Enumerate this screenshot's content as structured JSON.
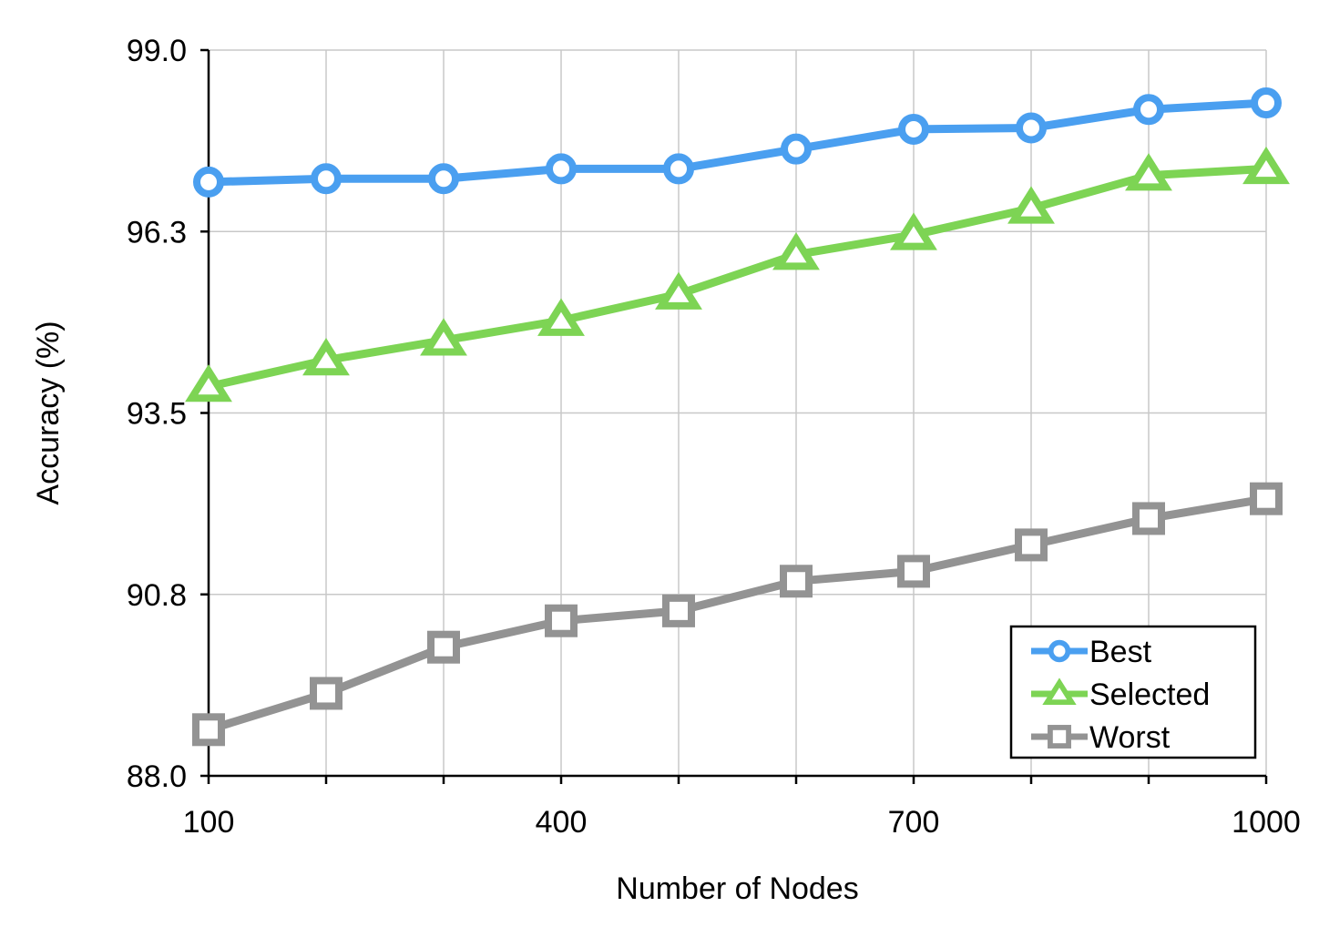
{
  "chart_data": {
    "type": "line",
    "xlabel": "Number of Nodes",
    "ylabel": "Accuracy (%)",
    "x": [
      100,
      200,
      300,
      400,
      500,
      600,
      700,
      800,
      900,
      1000
    ],
    "xlim": [
      100,
      1000
    ],
    "xtick_labels": [
      "100",
      "400",
      "700",
      "1000"
    ],
    "xtick_values": [
      100,
      400,
      700,
      1000
    ],
    "ylim": [
      88.0,
      99.0
    ],
    "ytick_labels": [
      "99.0",
      "96.3",
      "93.5",
      "90.8",
      "88.0"
    ],
    "ytick_values": [
      99.0,
      96.25,
      93.5,
      90.75,
      88.0
    ],
    "grid": true,
    "legend_position": "bottom-right",
    "series": [
      {
        "name": "Best",
        "marker": "circle",
        "color": "#4a9ff0",
        "values": [
          97.0,
          97.05,
          97.05,
          97.2,
          97.2,
          97.5,
          97.8,
          97.82,
          98.1,
          98.2
        ]
      },
      {
        "name": "Selected",
        "marker": "triangle",
        "color": "#7dd454",
        "values": [
          93.9,
          94.3,
          94.6,
          94.9,
          95.3,
          95.9,
          96.2,
          96.6,
          97.1,
          97.2
        ]
      },
      {
        "name": "Worst",
        "marker": "square",
        "color": "#939393",
        "values": [
          88.7,
          89.25,
          89.95,
          90.35,
          90.5,
          90.95,
          91.1,
          91.5,
          91.9,
          92.2
        ]
      }
    ]
  }
}
